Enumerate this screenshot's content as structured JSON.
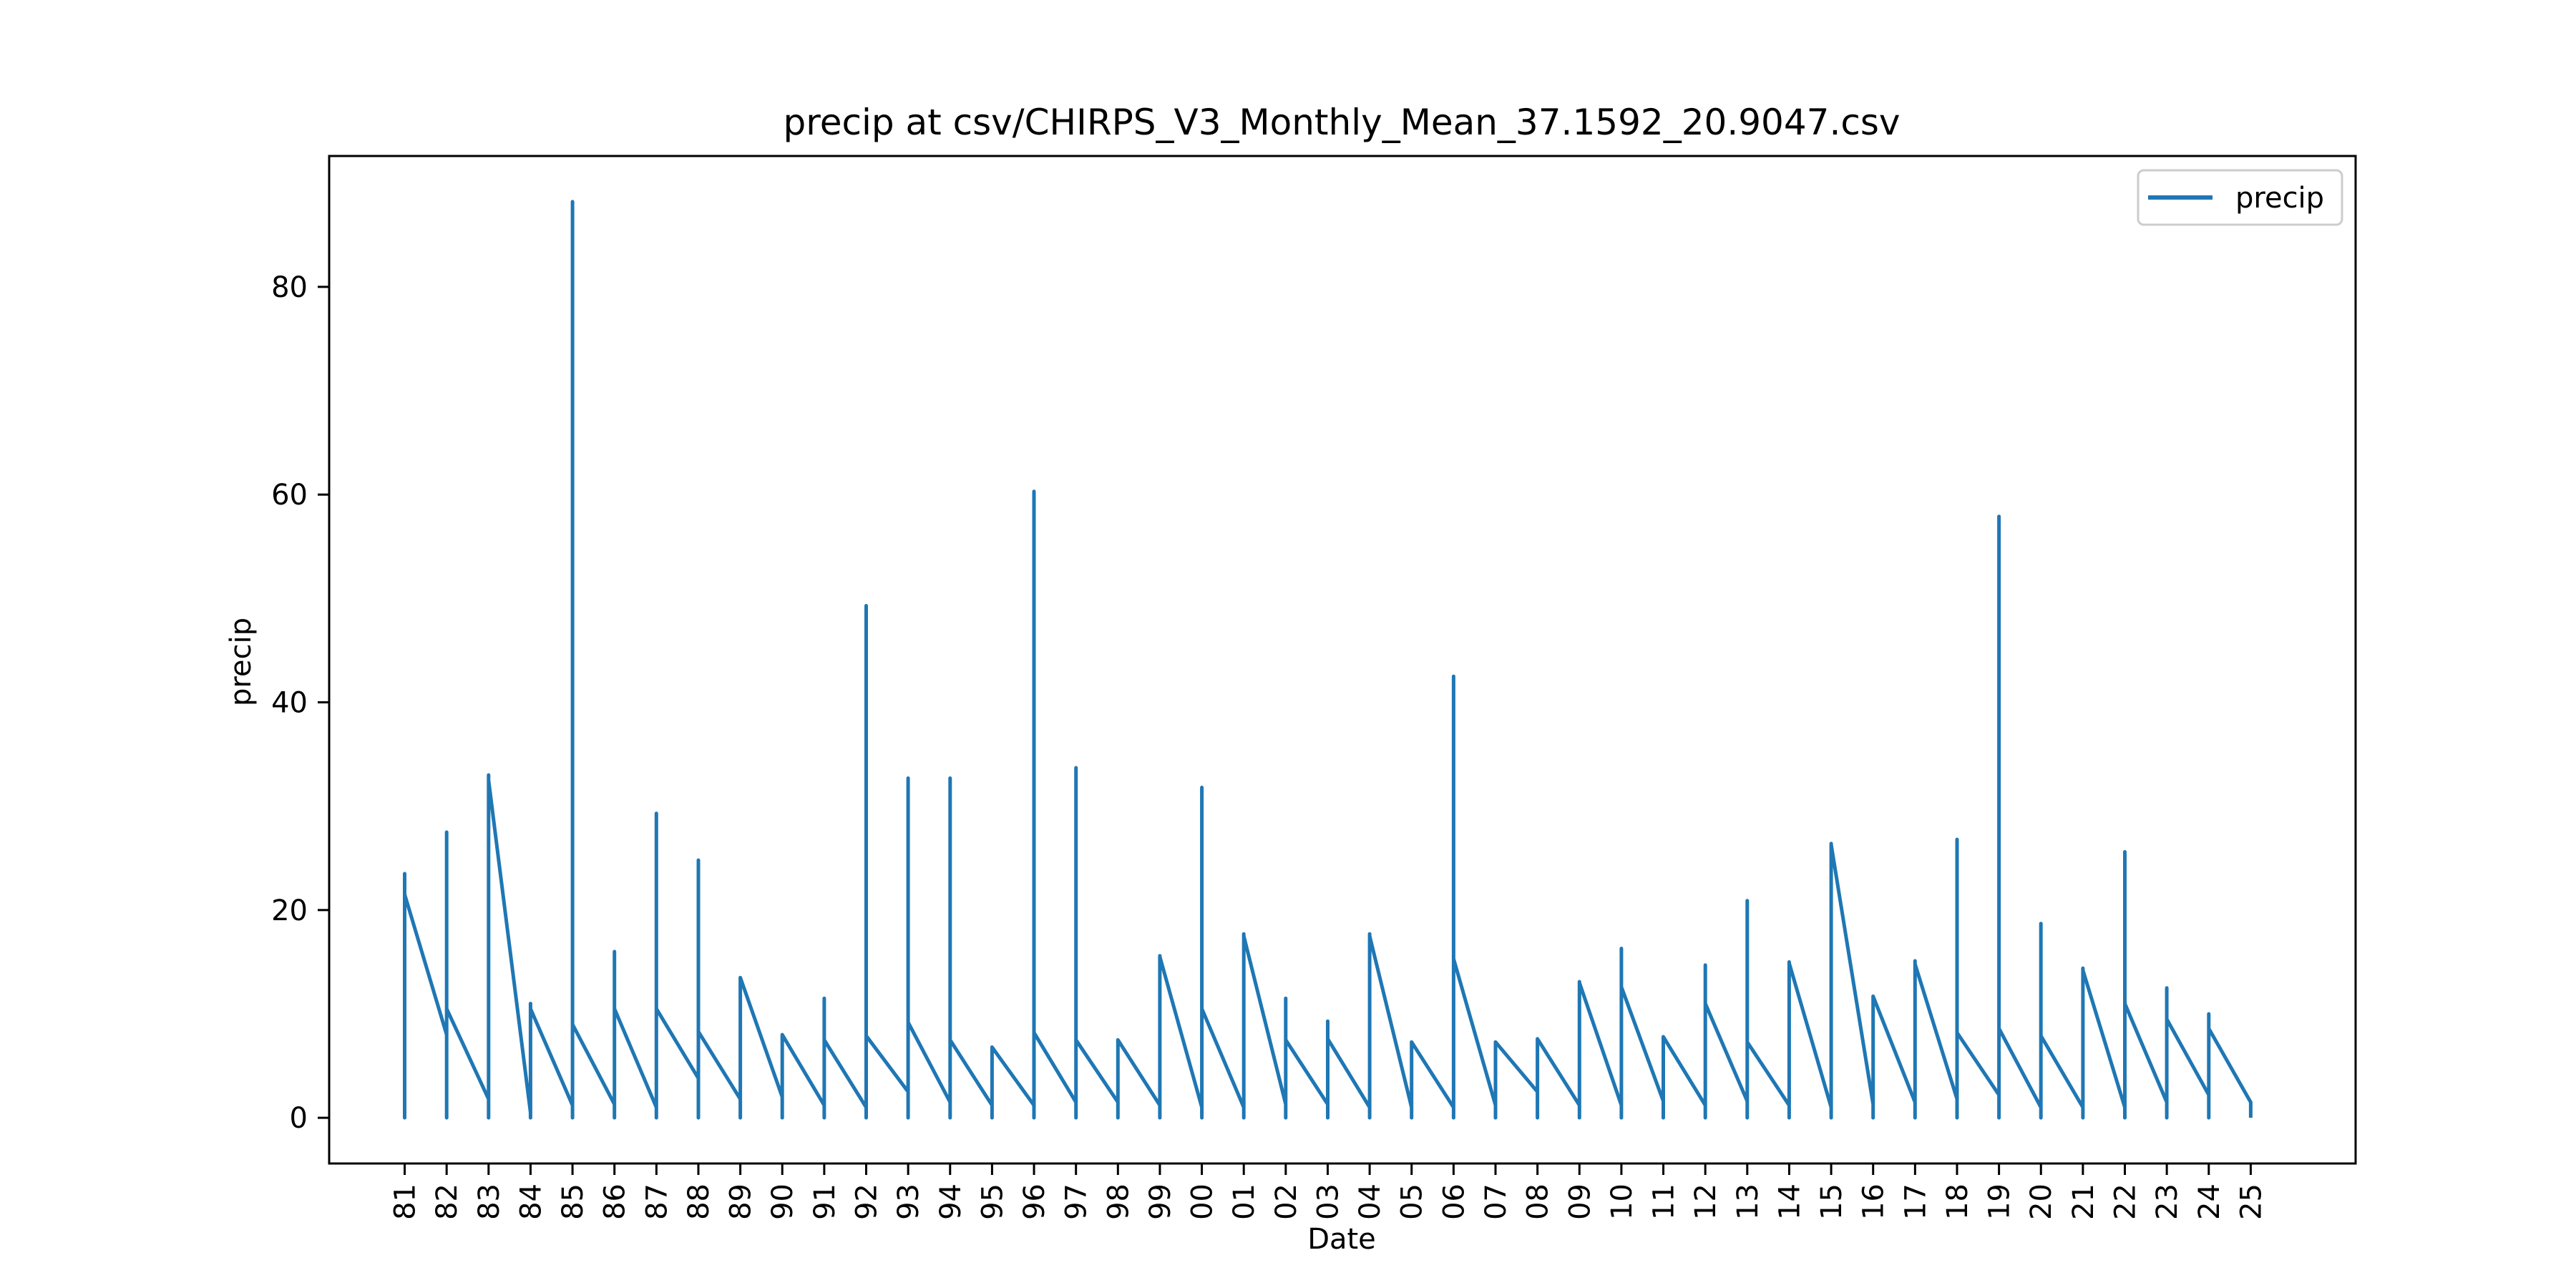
{
  "chart_data": {
    "type": "line",
    "title": "precip at csv/CHIRPS_V3_Monthly_Mean_37.1592_20.9047.csv",
    "xlabel": "Date",
    "ylabel": "precip",
    "x_tick_labels": [
      "81",
      "82",
      "83",
      "84",
      "85",
      "86",
      "87",
      "88",
      "89",
      "90",
      "91",
      "92",
      "93",
      "94",
      "95",
      "96",
      "97",
      "98",
      "99",
      "00",
      "01",
      "02",
      "03",
      "04",
      "05",
      "06",
      "07",
      "08",
      "09",
      "10",
      "11",
      "12",
      "13",
      "14",
      "15",
      "16",
      "17",
      "18",
      "19",
      "20",
      "21",
      "22",
      "23",
      "24",
      "25"
    ],
    "x_tick_positions": [
      1981,
      1982,
      1983,
      1984,
      1985,
      1986,
      1987,
      1988,
      1989,
      1990,
      1991,
      1992,
      1993,
      1994,
      1995,
      1996,
      1997,
      1998,
      1999,
      2000,
      2001,
      2002,
      2003,
      2004,
      2005,
      2006,
      2007,
      2008,
      2009,
      2010,
      2011,
      2012,
      2013,
      2014,
      2015,
      2016,
      2017,
      2018,
      2019,
      2020,
      2021,
      2022,
      2023,
      2024,
      2025
    ],
    "xlim": [
      1979.2,
      2027.5
    ],
    "ylim": [
      -4.4,
      92.6
    ],
    "y_ticks": [
      0,
      20,
      40,
      60,
      80
    ],
    "grid": false,
    "legend": {
      "position": "upper right",
      "entries": [
        "precip"
      ]
    },
    "series": [
      {
        "name": "precip",
        "color": "#1f77b4",
        "x": [
          1981,
          1981,
          1981,
          1981,
          1982,
          1982,
          1982,
          1982,
          1983,
          1983,
          1983,
          1983,
          1984,
          1984,
          1984,
          1984,
          1985,
          1985,
          1985,
          1985,
          1986,
          1986,
          1986,
          1986,
          1987,
          1987,
          1987,
          1987,
          1988,
          1988,
          1988,
          1988,
          1989,
          1989,
          1989,
          1989,
          1990,
          1990,
          1990,
          1990,
          1991,
          1991,
          1991,
          1991,
          1992,
          1992,
          1992,
          1992,
          1993,
          1993,
          1993,
          1993,
          1994,
          1994,
          1994,
          1994,
          1995,
          1995,
          1995,
          1995,
          1996,
          1996,
          1996,
          1996,
          1997,
          1997,
          1997,
          1997,
          1998,
          1998,
          1998,
          1998,
          1999,
          1999,
          1999,
          1999,
          2000,
          2000,
          2000,
          2000,
          2001,
          2001,
          2001,
          2001,
          2002,
          2002,
          2002,
          2002,
          2003,
          2003,
          2003,
          2003,
          2004,
          2004,
          2004,
          2004,
          2005,
          2005,
          2005,
          2005,
          2006,
          2006,
          2006,
          2006,
          2007,
          2007,
          2007,
          2007,
          2008,
          2008,
          2008,
          2008,
          2009,
          2009,
          2009,
          2009,
          2010,
          2010,
          2010,
          2010,
          2011,
          2011,
          2011,
          2011,
          2012,
          2012,
          2012,
          2012,
          2013,
          2013,
          2013,
          2013,
          2014,
          2014,
          2014,
          2014,
          2015,
          2015,
          2015,
          2015,
          2016,
          2016,
          2016,
          2016,
          2017,
          2017,
          2017,
          2017,
          2018,
          2018,
          2018,
          2018,
          2019,
          2019,
          2019,
          2019,
          2020,
          2020,
          2020,
          2020,
          2021,
          2021,
          2021,
          2021,
          2022,
          2022,
          2022,
          2022,
          2023,
          2023,
          2023,
          2023,
          2024,
          2024,
          2024,
          2024,
          2025,
          2025
        ],
        "y": [
          2.5,
          0.0,
          23.5,
          21.5,
          8.0,
          0.0,
          27.5,
          10.5,
          1.8,
          0.0,
          33.0,
          32.5,
          0.5,
          0.0,
          11.0,
          10.5,
          1.2,
          0.0,
          88.2,
          9.0,
          1.3,
          0.0,
          16.0,
          10.5,
          1.0,
          0.0,
          29.3,
          10.5,
          3.8,
          0.0,
          24.8,
          8.3,
          1.8,
          0.0,
          13.5,
          13.5,
          2.0,
          0.0,
          8.0,
          8.0,
          1.2,
          0.0,
          11.5,
          7.5,
          1.0,
          0.0,
          49.3,
          7.9,
          2.5,
          0.0,
          32.7,
          9.2,
          1.5,
          0.0,
          32.7,
          7.5,
          1.2,
          0.0,
          6.8,
          6.8,
          1.2,
          0.0,
          60.3,
          8.2,
          1.5,
          0.0,
          33.7,
          7.5,
          1.5,
          0.0,
          7.5,
          7.5,
          1.2,
          0.0,
          15.6,
          15.5,
          1.0,
          0.0,
          31.8,
          10.5,
          1.0,
          0.0,
          17.7,
          17.5,
          1.3,
          0.0,
          11.5,
          7.5,
          1.3,
          0.0,
          9.3,
          7.6,
          1.0,
          0.0,
          17.7,
          17.5,
          1.0,
          0.0,
          7.3,
          7.3,
          1.0,
          0.0,
          42.5,
          15.3,
          1.2,
          0.0,
          7.3,
          7.3,
          2.5,
          0.0,
          7.6,
          7.6,
          1.2,
          0.0,
          13.1,
          13.0,
          1.2,
          0.0,
          16.3,
          12.6,
          1.6,
          0.0,
          7.8,
          7.8,
          1.2,
          0.0,
          14.7,
          11.0,
          1.6,
          0.0,
          20.9,
          7.3,
          1.2,
          0.0,
          15.0,
          14.9,
          1.0,
          0.0,
          26.4,
          26.3,
          1.3,
          0.0,
          11.7,
          11.7,
          1.5,
          0.0,
          15.1,
          14.8,
          1.8,
          0.0,
          26.8,
          8.2,
          2.2,
          0.0,
          57.9,
          8.6,
          1.0,
          0.0,
          18.7,
          7.9,
          1.0,
          0.0,
          14.4,
          14.2,
          1.0,
          0.0,
          25.6,
          11.0,
          1.5,
          0.0,
          12.5,
          9.5,
          2.2,
          0.0,
          10.0,
          8.6,
          1.5,
          0.0
        ]
      }
    ]
  }
}
